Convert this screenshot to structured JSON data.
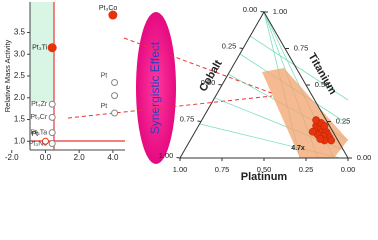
{
  "chart_data": [
    {
      "type": "scatter",
      "y_label": "Relative Mass Activity",
      "xlim": [
        -2.4,
        4.6
      ],
      "ylim": [
        0.8,
        4.2
      ],
      "xticks": [
        {
          "value": -2,
          "label": "-2.0"
        },
        {
          "value": 0,
          "label": "0.0"
        },
        {
          "value": 2,
          "label": "2.0"
        },
        {
          "value": 4,
          "label": "4.0"
        }
      ],
      "yticks": [
        {
          "value": 1,
          "label": "1.0"
        },
        {
          "value": 1.5,
          "label": "1.5"
        },
        {
          "value": 2,
          "label": "2.0"
        },
        {
          "value": 2.5,
          "label": "2.5"
        },
        {
          "value": 3,
          "label": "3.0"
        },
        {
          "value": 3.5,
          "label": "3.5"
        }
      ],
      "x": [
        4.0,
        0.4,
        0.4,
        0.4,
        0.4,
        0.4,
        0.0,
        4.1,
        4.1,
        4.1
      ],
      "values": [
        3.9,
        3.15,
        1.85,
        1.55,
        1.2,
        0.95,
        1.0,
        2.35,
        2.05,
        1.65
      ],
      "point_labels": [
        "Pt₃Co",
        "Pt₃Ti",
        "Pt₃Zr",
        "Pt₃Cr",
        "Pt₃Ta",
        "Pt₃Nb",
        "Pt",
        "Pt",
        null,
        "Pt"
      ],
      "colors": [
        "#e8300c",
        "#e8300c",
        "#888888",
        "#888888",
        "#888888",
        "#888888",
        "#e8300c",
        "#888888",
        "#888888",
        "#888888"
      ],
      "filled": [
        true,
        true,
        false,
        false,
        false,
        false,
        false,
        false,
        false,
        false
      ]
    },
    {
      "type": "annotation",
      "text": "Synergistic Effect"
    },
    {
      "type": "ternary",
      "axes": [
        {
          "label": "Cobalt",
          "ticks": [
            {
              "value": 0,
              "label": "0.00"
            },
            {
              "value": 0.25,
              "label": "0.25"
            },
            {
              "value": 0.5,
              "label": "0.50"
            },
            {
              "value": 0.75,
              "label": "0.75"
            },
            {
              "value": 1,
              "label": "1.00"
            }
          ]
        },
        {
          "label": "Titanium",
          "ticks": [
            {
              "value": 0,
              "label": "0.00"
            },
            {
              "value": 0.25,
              "label": "0.25"
            },
            {
              "value": 0.5,
              "label": "0.50"
            },
            {
              "value": 0.75,
              "label": "0.75"
            },
            {
              "value": 1,
              "label": "1.00"
            }
          ]
        },
        {
          "label": "Platinum",
          "ticks": [
            {
              "value": 0,
              "label": "0.00"
            },
            {
              "value": 0.25,
              "label": "0.25"
            },
            {
              "value": 0.5,
              "label": "0.50"
            },
            {
              "value": 0.75,
              "label": "0.75"
            },
            {
              "value": 1,
              "label": "1.00"
            }
          ]
        }
      ],
      "platinum": [
        0.7,
        0.72,
        0.74,
        0.72,
        0.76,
        0.78,
        0.75,
        0.8,
        0.82,
        0.78,
        0.74,
        0.7,
        0.68,
        0.84,
        0.8,
        0.77
      ],
      "titanium": [
        0.22,
        0.2,
        0.2,
        0.24,
        0.18,
        0.18,
        0.22,
        0.16,
        0.14,
        0.15,
        0.16,
        0.18,
        0.26,
        0.12,
        0.12,
        0.13
      ],
      "cobalt": [
        0.08,
        0.08,
        0.06,
        0.04,
        0.06,
        0.04,
        0.03,
        0.04,
        0.04,
        0.07,
        0.1,
        0.12,
        0.06,
        0.04,
        0.08,
        0.1
      ],
      "color": "#e8340c",
      "annotation": "4.7x"
    }
  ]
}
